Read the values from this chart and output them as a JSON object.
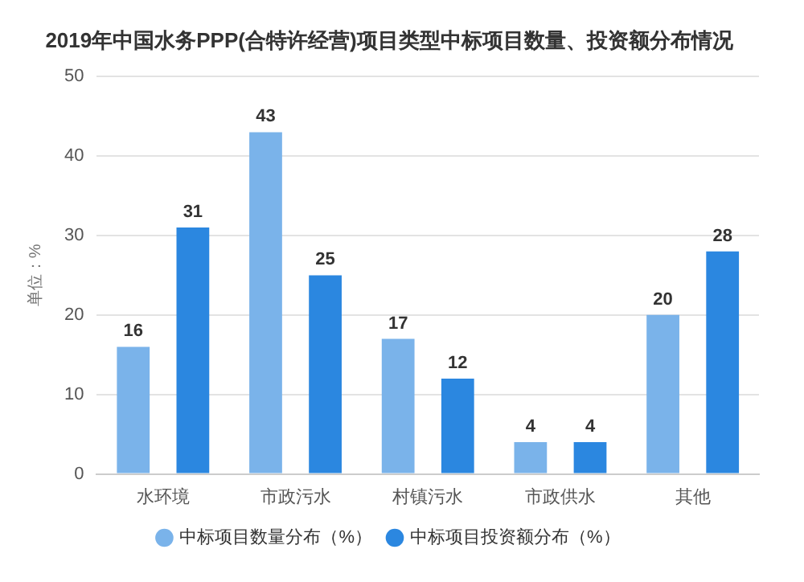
{
  "chart_data": {
    "type": "bar",
    "title": "2019年中国水务PPP(合特许经营)项目类型中标项目数量、投资额分布情况",
    "ylabel": "单位：%",
    "categories": [
      "水环境",
      "市政污水",
      "村镇污水",
      "市政供水",
      "其他"
    ],
    "series": [
      {
        "name": "中标项目数量分布（%）",
        "color": "#7ab3ea",
        "values": [
          16,
          43,
          17,
          4,
          20
        ]
      },
      {
        "name": "中标项目投资额分布（%）",
        "color": "#2b87e0",
        "values": [
          31,
          25,
          12,
          4,
          28
        ]
      }
    ],
    "ylim": [
      0,
      50
    ],
    "yticks": [
      0,
      10,
      20,
      30,
      40,
      50
    ],
    "grid": "y",
    "legend": "bottom",
    "data_labels": true
  }
}
